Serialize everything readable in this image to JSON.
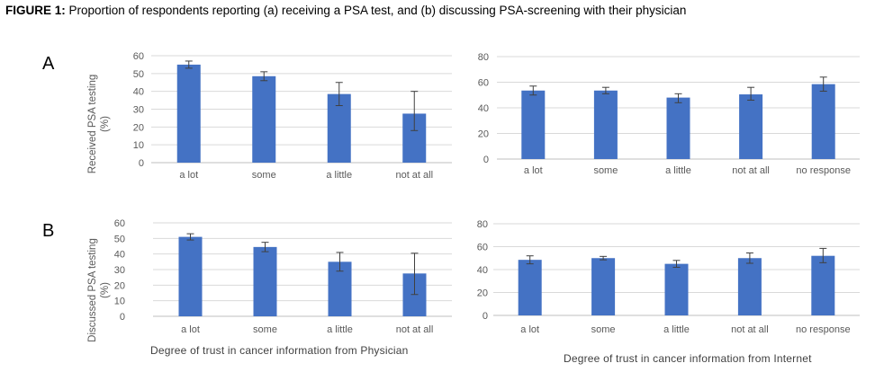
{
  "caption": {
    "label": "FIGURE 1:",
    "text": "Proportion of respondents reporting (a) receiving a PSA test, and (b) discussing PSA-screening with their physician"
  },
  "panel_letters": [
    "A",
    "B"
  ],
  "ylabels": {
    "row_a": [
      "Received PSA testing",
      "(%)"
    ],
    "row_b": [
      "Discussed PSA testing",
      "(%)"
    ]
  },
  "xlabels": {
    "left": "Degree  of trust in cancer information from Physician",
    "right": "Degree  of trust in cancer information from Internet"
  },
  "colors": {
    "bar": "#4472C4",
    "grid": "#D9D9D9",
    "axis": "#BFBFBF",
    "error": "#404040"
  },
  "chart_data": [
    {
      "id": "chart-a-physician",
      "type": "bar",
      "title": "",
      "xlabel": "",
      "ylabel": "Received PSA testing (%)",
      "categories": [
        "a lot",
        "some",
        "a little",
        "not at all"
      ],
      "values": [
        55,
        48.5,
        38.5,
        27.5
      ],
      "error": [
        [
          53,
          57
        ],
        [
          46,
          51
        ],
        [
          32,
          45
        ],
        [
          18,
          40
        ]
      ],
      "ylim": [
        0,
        60
      ],
      "yticks": [
        0,
        10,
        20,
        30,
        40,
        50,
        60
      ]
    },
    {
      "id": "chart-a-internet",
      "type": "bar",
      "title": "",
      "xlabel": "",
      "ylabel": "Received PSA testing (%)",
      "categories": [
        "a lot",
        "some",
        "a little",
        "not at all",
        "no response"
      ],
      "values": [
        53.5,
        53.5,
        48,
        50.5,
        58.5
      ],
      "error": [
        [
          50,
          57
        ],
        [
          51,
          56
        ],
        [
          44,
          51
        ],
        [
          46,
          56
        ],
        [
          53,
          64
        ]
      ],
      "ylim": [
        0,
        80
      ],
      "yticks": [
        0,
        20,
        40,
        60,
        80
      ]
    },
    {
      "id": "chart-b-physician",
      "type": "bar",
      "title": "",
      "xlabel": "Degree  of trust in cancer information from Physician",
      "ylabel": "Discussed PSA testing (%)",
      "categories": [
        "a lot",
        "some",
        "a little",
        "not at all"
      ],
      "values": [
        51,
        44.5,
        35,
        27.5
      ],
      "error": [
        [
          49,
          53
        ],
        [
          41.5,
          47.5
        ],
        [
          29,
          41
        ],
        [
          14,
          40.5
        ]
      ],
      "ylim": [
        0,
        60
      ],
      "yticks": [
        0,
        10,
        20,
        30,
        40,
        50,
        60
      ]
    },
    {
      "id": "chart-b-internet",
      "type": "bar",
      "title": "",
      "xlabel": "Degree  of trust in cancer information from Internet",
      "ylabel": "Discussed PSA testing (%)",
      "categories": [
        "a lot",
        "some",
        "a little",
        "not at all",
        "no response"
      ],
      "values": [
        48.5,
        50,
        45,
        50,
        52
      ],
      "error": [
        [
          45,
          52
        ],
        [
          48.5,
          51.5
        ],
        [
          42,
          48
        ],
        [
          45.5,
          54.5
        ],
        [
          46,
          58.5
        ]
      ],
      "ylim": [
        0,
        80
      ],
      "yticks": [
        0,
        20,
        40,
        60,
        80
      ]
    }
  ]
}
